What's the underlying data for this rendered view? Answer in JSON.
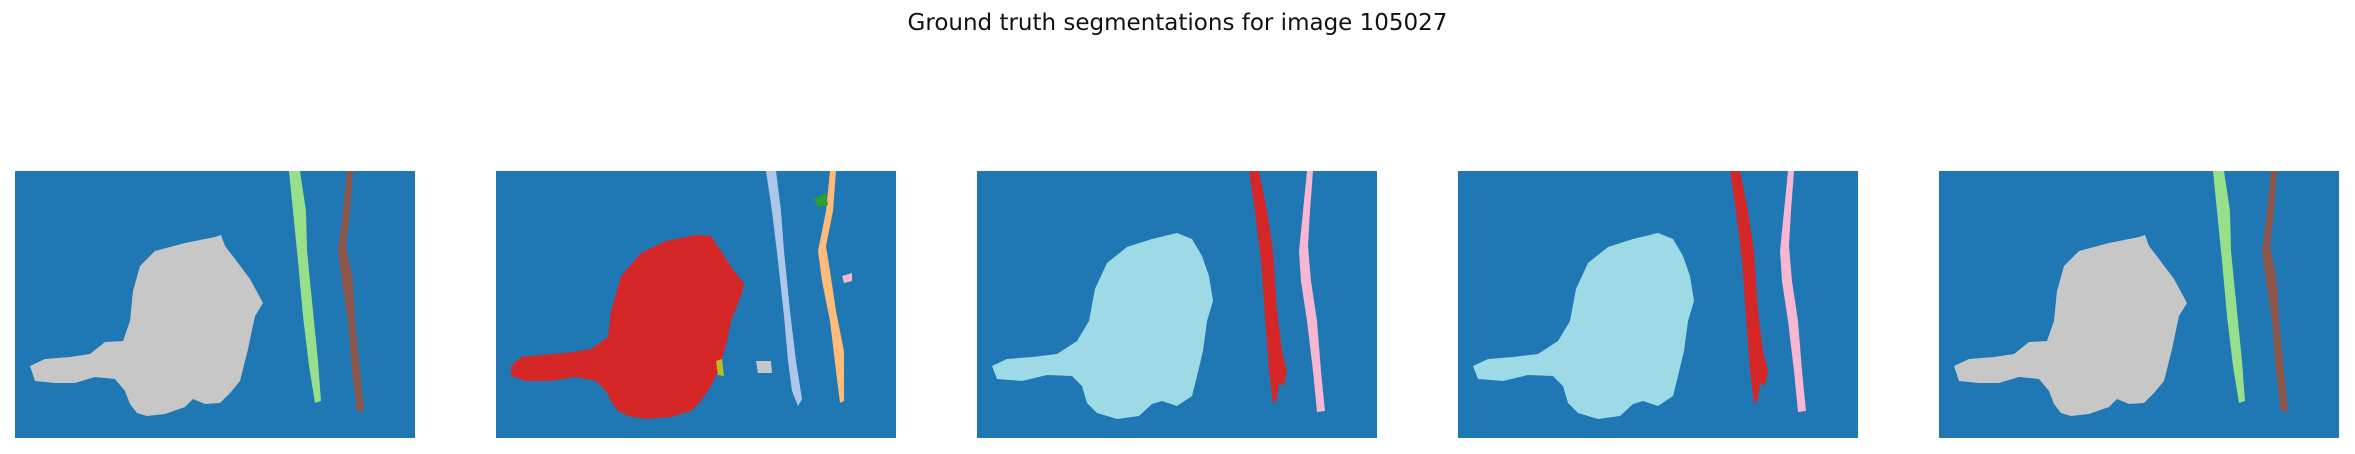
{
  "figure": {
    "title": "Ground truth segmentations for image 105027"
  },
  "colors": {
    "background": "#1f77b4",
    "gray": "#c7c7c7",
    "red": "#d62728",
    "light_cyan": "#9edae5",
    "green_light": "#98df8a",
    "brown": "#8c564b",
    "blue_light": "#aec7e8",
    "orange_light": "#ffbb78",
    "pink": "#f7b6d2",
    "dark_green": "#2ca02c",
    "olive": "#bcbd22"
  },
  "panels": [
    {
      "id": 1,
      "main_region": "gray",
      "variant": "three-region"
    },
    {
      "id": 2,
      "main_region": "red",
      "variant": "multi-region"
    },
    {
      "id": 3,
      "main_region": "light_cyan",
      "variant": "red-pink"
    },
    {
      "id": 4,
      "main_region": "light_cyan",
      "variant": "red-pink"
    },
    {
      "id": 5,
      "main_region": "gray",
      "variant": "three-region"
    }
  ]
}
